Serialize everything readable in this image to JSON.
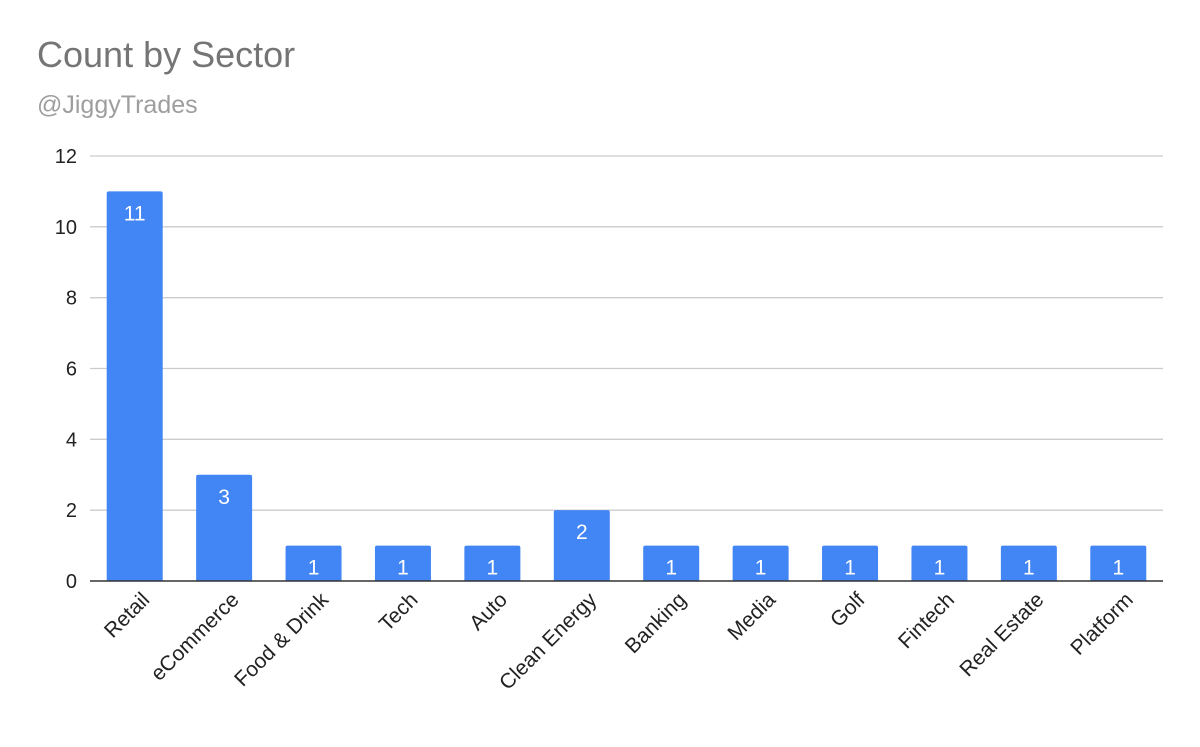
{
  "chart_data": {
    "type": "bar",
    "title": "Count by Sector",
    "subtitle": "@JiggyTrades",
    "xlabel": "",
    "ylabel": "",
    "categories": [
      "Retail",
      "eCommerce",
      "Food & Drink",
      "Tech",
      "Auto",
      "Clean Energy",
      "Banking",
      "Media",
      "Golf",
      "Fintech",
      "Real Estate",
      "Platform"
    ],
    "values": [
      11,
      3,
      1,
      1,
      1,
      2,
      1,
      1,
      1,
      1,
      1,
      1
    ],
    "data_labels": [
      "11",
      "3",
      "1",
      "1",
      "1",
      "2",
      "1",
      "1",
      "1",
      "1",
      "1",
      "1"
    ],
    "ylim": [
      0,
      12
    ],
    "yticks": [
      0,
      2,
      4,
      6,
      8,
      10,
      12
    ],
    "ytick_labels": [
      "0",
      "2",
      "4",
      "6",
      "8",
      "10",
      "12"
    ],
    "grid": true,
    "legend": "none",
    "colors": {
      "bar": "#4285f4",
      "data_label": "#ffffff",
      "grid": "#cccccc",
      "axis": "#333333",
      "tick_text": "#222222",
      "title": "#757575",
      "subtitle": "#9e9e9e"
    }
  }
}
